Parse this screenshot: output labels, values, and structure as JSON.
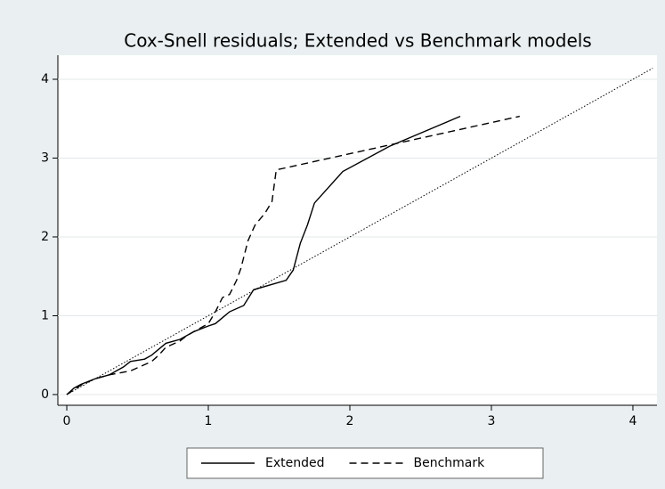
{
  "chart_data": {
    "type": "line",
    "title": "Cox-Snell residuals; Extended vs Benchmark models",
    "series": [
      {
        "name": "Extended",
        "color": "#000000",
        "dash": "solid",
        "x": [
          0,
          0.05,
          0.1,
          0.2,
          0.3,
          0.4,
          0.45,
          0.55,
          0.6,
          0.7,
          0.8,
          0.9,
          1.0,
          1.05,
          1.15,
          1.25,
          1.32,
          1.55,
          1.6,
          1.65,
          1.7,
          1.75,
          1.95,
          2.28,
          2.78
        ],
        "values": [
          0,
          0.08,
          0.13,
          0.2,
          0.25,
          0.35,
          0.42,
          0.45,
          0.5,
          0.65,
          0.7,
          0.8,
          0.87,
          0.9,
          1.05,
          1.13,
          1.33,
          1.45,
          1.58,
          1.92,
          2.15,
          2.43,
          2.83,
          3.15,
          3.53
        ]
      },
      {
        "name": "Benchmark",
        "color": "#000000",
        "dash": "dashed",
        "x": [
          0,
          0.1,
          0.2,
          0.3,
          0.45,
          0.6,
          0.65,
          0.7,
          0.8,
          0.85,
          0.9,
          1.0,
          1.05,
          1.1,
          1.15,
          1.2,
          1.23,
          1.28,
          1.33,
          1.4,
          1.45,
          1.48,
          3.2
        ],
        "values": [
          0,
          0.12,
          0.2,
          0.25,
          0.3,
          0.42,
          0.5,
          0.6,
          0.68,
          0.75,
          0.8,
          0.9,
          1.05,
          1.23,
          1.27,
          1.45,
          1.6,
          1.95,
          2.15,
          2.3,
          2.45,
          2.85,
          3.53
        ]
      }
    ],
    "reference_line": {
      "x": [
        0,
        4.14
      ],
      "values": [
        0,
        4.14
      ],
      "color": "#000000",
      "dash": "dotted"
    },
    "xlim": [
      -0.063,
      4.17
    ],
    "ylim": [
      -0.136,
      4.305
    ],
    "xticks": [
      0,
      1,
      2,
      3,
      4
    ],
    "yticks": [
      0,
      1,
      2,
      3,
      4
    ],
    "grid": true,
    "legend": "bottom"
  }
}
